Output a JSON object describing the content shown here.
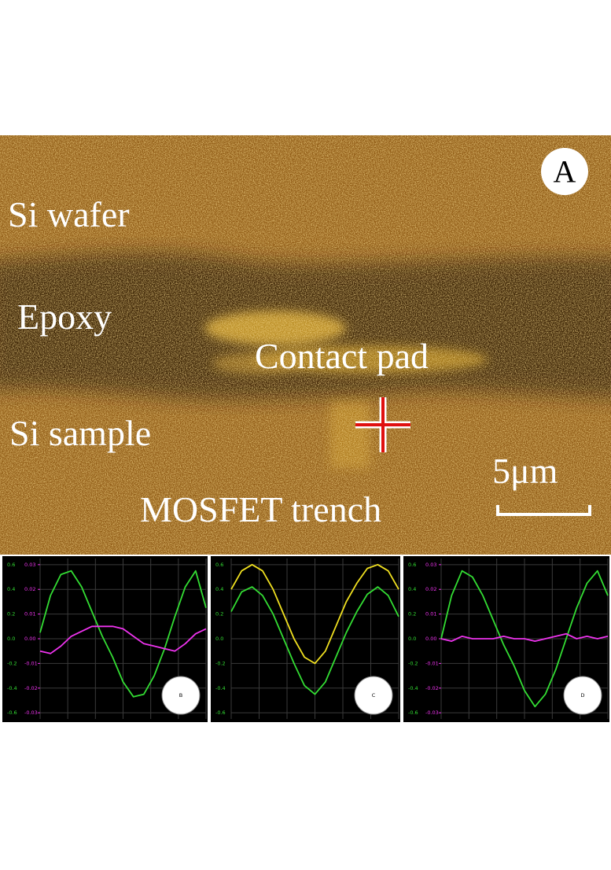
{
  "image": {
    "panel_label": "A",
    "si_wafer": "Si wafer",
    "epoxy": "Epoxy",
    "contact_pad": "Contact pad",
    "si_sample": "Si sample",
    "mosfet_trench": "MOSFET trench",
    "scale_bar": "5μm"
  },
  "chart_data": [
    {
      "type": "line",
      "panel_label": "B",
      "categories": [
        null,
        null,
        null,
        null,
        null,
        null,
        null,
        null,
        null,
        null,
        null,
        null,
        null,
        null,
        null,
        null,
        null
      ],
      "ylim": [
        -0.65,
        0.65
      ],
      "yticks": [
        0.6,
        0.4,
        0.2,
        {
          "value": 0,
          "label": "0.0"
        },
        -0.2,
        -0.4,
        -0.6
      ],
      "y2lim": [
        -0.0325,
        0.0325
      ],
      "y2ticks": [
        0.03,
        0.02,
        0.01,
        {
          "value": 0,
          "label": "0.00"
        },
        -0.01,
        -0.02,
        -0.03
      ],
      "grid": true,
      "series": [
        {
          "color": "#33dd33",
          "values": [
            0.05,
            0.35,
            0.52,
            0.55,
            0.42,
            0.22,
            0.02,
            -0.15,
            -0.35,
            -0.47,
            -0.45,
            -0.3,
            -0.08,
            0.18,
            0.42,
            0.55,
            0.25
          ]
        },
        {
          "color": "#ee33ee",
          "axis": "y2",
          "values": [
            -0.005,
            -0.006,
            -0.003,
            0.001,
            0.003,
            0.005,
            0.005,
            0.005,
            0.004,
            0.001,
            -0.002,
            -0.003,
            -0.004,
            -0.005,
            -0.002,
            0.002,
            0.004
          ]
        }
      ]
    },
    {
      "type": "line",
      "panel_label": "C",
      "categories": [
        null,
        null,
        null,
        null,
        null,
        null,
        null,
        null,
        null,
        null,
        null,
        null,
        null,
        null,
        null,
        null,
        null
      ],
      "ylim": [
        -0.65,
        0.65
      ],
      "yticks": [
        0.6,
        0.4,
        0.2,
        {
          "value": 0,
          "label": "0.0"
        },
        -0.2,
        -0.4,
        -0.6
      ],
      "grid": true,
      "series": [
        {
          "color": "#33dd33",
          "values": [
            0.22,
            0.38,
            0.42,
            0.35,
            0.2,
            0.0,
            -0.2,
            -0.38,
            -0.45,
            -0.35,
            -0.15,
            0.05,
            0.22,
            0.36,
            0.42,
            0.35,
            0.18
          ]
        },
        {
          "color": "#f0e020",
          "values": [
            0.4,
            0.55,
            0.6,
            0.55,
            0.4,
            0.2,
            0.0,
            -0.15,
            -0.2,
            -0.1,
            0.1,
            0.3,
            0.45,
            0.57,
            0.6,
            0.55,
            0.4
          ]
        }
      ]
    },
    {
      "type": "line",
      "panel_label": "D",
      "categories": [
        null,
        null,
        null,
        null,
        null,
        null,
        null,
        null,
        null,
        null,
        null,
        null,
        null,
        null,
        null,
        null,
        null
      ],
      "ylim": [
        -0.65,
        0.65
      ],
      "yticks": [
        0.6,
        0.4,
        0.2,
        {
          "value": 0,
          "label": "0.0"
        },
        -0.2,
        -0.4,
        -0.6
      ],
      "y2lim": [
        -0.0325,
        0.0325
      ],
      "y2ticks": [
        0.03,
        0.02,
        0.01,
        {
          "value": 0,
          "label": "0.00"
        },
        -0.01,
        -0.02,
        -0.03
      ],
      "grid": true,
      "series": [
        {
          "color": "#33dd33",
          "values": [
            0.0,
            0.35,
            0.55,
            0.5,
            0.35,
            0.15,
            -0.05,
            -0.22,
            -0.42,
            -0.55,
            -0.45,
            -0.25,
            0.0,
            0.25,
            0.45,
            0.55,
            0.35
          ]
        },
        {
          "color": "#ee33ee",
          "axis": "y2",
          "values": [
            0.0,
            -0.001,
            0.001,
            0.0,
            0.0,
            0.0,
            0.001,
            0.0,
            0.0,
            -0.001,
            0.0,
            0.001,
            0.002,
            0.0,
            0.001,
            0.0,
            0.001
          ]
        }
      ]
    }
  ]
}
